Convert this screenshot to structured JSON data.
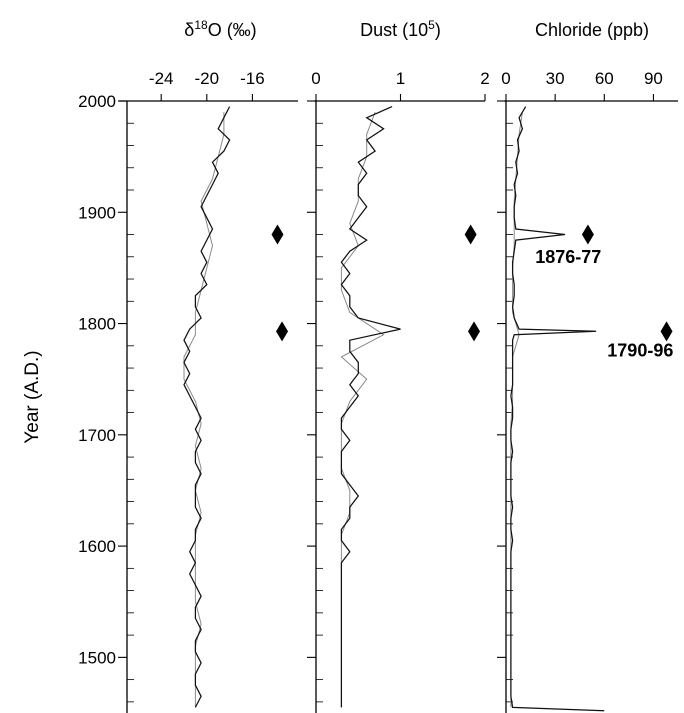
{
  "chart_data": {
    "type": "line",
    "orientation": "vertical-depth-profile",
    "ylabel": "Year (A.D.)",
    "ylim": [
      1450,
      2000
    ],
    "yticks": [
      2000,
      1900,
      1800,
      1700,
      1600,
      1500
    ],
    "ytick_labels": [
      "2000",
      "1900",
      "1800",
      "1700",
      "1600",
      "1500"
    ],
    "y_minor_step": 20,
    "panels": [
      {
        "id": "d18o",
        "title_prefix": "δ",
        "title_sup": "18",
        "title_suffix": "O (‰)",
        "xlim": [
          -27,
          -12
        ],
        "xticks": [
          -24,
          -20,
          -16
        ],
        "xtick_labels": [
          "-24",
          "-20",
          "-16"
        ],
        "series": {
          "dark": {
            "years": [
              1995,
              1985,
              1975,
              1965,
              1955,
              1945,
              1935,
              1925,
              1915,
              1905,
              1895,
              1885,
              1875,
              1865,
              1855,
              1845,
              1835,
              1825,
              1815,
              1805,
              1795,
              1785,
              1775,
              1765,
              1755,
              1745,
              1735,
              1725,
              1715,
              1705,
              1695,
              1685,
              1675,
              1665,
              1655,
              1645,
              1635,
              1625,
              1615,
              1605,
              1595,
              1585,
              1575,
              1565,
              1555,
              1545,
              1535,
              1525,
              1515,
              1505,
              1495,
              1485,
              1475,
              1465,
              1455
            ],
            "values": [
              -18,
              -18.5,
              -19,
              -18,
              -18.5,
              -19.5,
              -19,
              -19.5,
              -20,
              -20.5,
              -20,
              -19.5,
              -20,
              -20.5,
              -20,
              -20.5,
              -20,
              -21,
              -21,
              -20.5,
              -21.5,
              -22,
              -21.5,
              -22,
              -21.5,
              -22,
              -21.5,
              -21,
              -20.5,
              -21,
              -20.5,
              -21,
              -21,
              -20.5,
              -21,
              -21,
              -21,
              -20.5,
              -21,
              -21,
              -21.5,
              -21,
              -21.5,
              -21,
              -20.5,
              -21,
              -21,
              -20.5,
              -21,
              -21,
              -20.5,
              -21,
              -21,
              -20.5,
              -21
            ]
          },
          "grey": {
            "years": [
              1990,
              1970,
              1950,
              1930,
              1910,
              1890,
              1870,
              1850,
              1830,
              1810,
              1790,
              1770,
              1750,
              1730,
              1710,
              1690,
              1670,
              1650,
              1630,
              1610,
              1590,
              1570,
              1550,
              1530,
              1510,
              1490,
              1470,
              1455
            ],
            "values": [
              -18.5,
              -18.5,
              -19,
              -19.5,
              -20.5,
              -20,
              -19.5,
              -20,
              -20.5,
              -21,
              -21,
              -22,
              -22,
              -21,
              -20.5,
              -21,
              -20.5,
              -21,
              -20.5,
              -21,
              -21,
              -21,
              -21,
              -20.5,
              -21,
              -21,
              -21,
              -21
            ]
          }
        }
      },
      {
        "id": "dust",
        "title_prefix": "Dust (10",
        "title_sup": "5",
        "title_suffix": ")",
        "xlim": [
          0,
          2
        ],
        "xticks": [
          0,
          1,
          2
        ],
        "xtick_labels": [
          "0",
          "1",
          "2"
        ],
        "series": {
          "dark": {
            "years": [
              1995,
              1985,
              1975,
              1965,
              1955,
              1945,
              1935,
              1925,
              1915,
              1905,
              1895,
              1885,
              1875,
              1865,
              1855,
              1845,
              1835,
              1825,
              1815,
              1805,
              1795,
              1785,
              1775,
              1765,
              1755,
              1745,
              1735,
              1725,
              1715,
              1705,
              1695,
              1685,
              1675,
              1665,
              1655,
              1645,
              1635,
              1625,
              1615,
              1605,
              1595,
              1585,
              1575,
              1565,
              1555,
              1545,
              1535,
              1525,
              1515,
              1505,
              1495,
              1485,
              1475,
              1465,
              1455
            ],
            "values": [
              0.9,
              0.6,
              0.8,
              0.6,
              0.7,
              0.5,
              0.6,
              0.5,
              0.5,
              0.6,
              0.5,
              0.4,
              0.6,
              0.4,
              0.3,
              0.4,
              0.3,
              0.4,
              0.4,
              0.5,
              1,
              0.4,
              0.4,
              0.5,
              0.5,
              0.4,
              0.5,
              0.4,
              0.3,
              0.3,
              0.4,
              0.3,
              0.3,
              0.3,
              0.4,
              0.5,
              0.4,
              0.4,
              0.3,
              0.3,
              0.4,
              0.3,
              0.3,
              0.3,
              0.3,
              0.3,
              0.3,
              0.3,
              0.3,
              0.3,
              0.3,
              0.3,
              0.3,
              0.3,
              0.3
            ]
          },
          "grey": {
            "years": [
              1990,
              1970,
              1950,
              1930,
              1910,
              1890,
              1870,
              1850,
              1830,
              1810,
              1790,
              1770,
              1750,
              1730,
              1710,
              1690,
              1670,
              1650,
              1630,
              1610,
              1590,
              1570,
              1550,
              1530,
              1510,
              1490,
              1470,
              1455
            ],
            "values": [
              0.7,
              0.6,
              0.6,
              0.5,
              0.5,
              0.4,
              0.5,
              0.3,
              0.3,
              0.4,
              0.8,
              0.3,
              0.6,
              0.4,
              0.3,
              0.3,
              0.3,
              0.4,
              0.4,
              0.3,
              0.3,
              0.3,
              0.3,
              0.3,
              0.3,
              0.3,
              0.3,
              0.3
            ]
          }
        }
      },
      {
        "id": "chloride",
        "title_prefix": "Chloride (ppb)",
        "title_sup": "",
        "title_suffix": "",
        "xlim": [
          0,
          105
        ],
        "xticks": [
          0,
          30,
          60,
          90
        ],
        "xtick_labels": [
          "0",
          "30",
          "60",
          "90"
        ],
        "series": {
          "dark": {
            "years": [
              1995,
              1985,
              1975,
              1965,
              1955,
              1945,
              1935,
              1925,
              1915,
              1905,
              1895,
              1885,
              1880,
              1875,
              1865,
              1855,
              1845,
              1835,
              1825,
              1815,
              1805,
              1795,
              1793,
              1790,
              1785,
              1775,
              1765,
              1755,
              1745,
              1735,
              1725,
              1715,
              1705,
              1695,
              1685,
              1675,
              1665,
              1655,
              1645,
              1635,
              1625,
              1615,
              1605,
              1595,
              1585,
              1575,
              1565,
              1555,
              1545,
              1535,
              1525,
              1515,
              1505,
              1495,
              1485,
              1475,
              1465,
              1455,
              1452
            ],
            "values": [
              12,
              8,
              10,
              7,
              8,
              6,
              7,
              5,
              6,
              5,
              5,
              6,
              36,
              6,
              5,
              4,
              4,
              5,
              5,
              4,
              5,
              8,
              55,
              5,
              4,
              4,
              4,
              4,
              4,
              3,
              4,
              4,
              3,
              3,
              4,
              3,
              3,
              3,
              3,
              4,
              3,
              3,
              4,
              3,
              3,
              3,
              3,
              3,
              3,
              3,
              3,
              3,
              3,
              3,
              3,
              3,
              3,
              4,
              60
            ]
          },
          "grey": {
            "years": [
              1990,
              1970,
              1950,
              1930,
              1910,
              1890,
              1870,
              1850,
              1830,
              1810,
              1790,
              1770,
              1750,
              1730,
              1710,
              1690,
              1670,
              1650,
              1630,
              1610,
              1590,
              1570,
              1550,
              1530,
              1510,
              1490,
              1470,
              1455
            ],
            "values": [
              10,
              8,
              7,
              6,
              5,
              5,
              5,
              4,
              4,
              4,
              8,
              4,
              4,
              4,
              3,
              3,
              3,
              3,
              3,
              3,
              3,
              3,
              3,
              3,
              3,
              3,
              3,
              3
            ]
          }
        }
      }
    ],
    "annotations": [
      {
        "panel": "d18o",
        "marker": "diamond",
        "year": 1880,
        "x": -13.8
      },
      {
        "panel": "d18o",
        "marker": "diamond",
        "year": 1793,
        "x": -13.4
      },
      {
        "panel": "dust",
        "marker": "diamond",
        "year": 1880,
        "x": 1.83
      },
      {
        "panel": "dust",
        "marker": "diamond",
        "year": 1793,
        "x": 1.87
      },
      {
        "panel": "chloride",
        "marker": "diamond",
        "year": 1880,
        "x": 50,
        "label": "1876-77",
        "label_x": 38,
        "label_year": 1860
      },
      {
        "panel": "chloride",
        "marker": "diamond",
        "year": 1793,
        "x": 98,
        "label": "1790-96",
        "label_x": 82,
        "label_year": 1776
      }
    ]
  }
}
